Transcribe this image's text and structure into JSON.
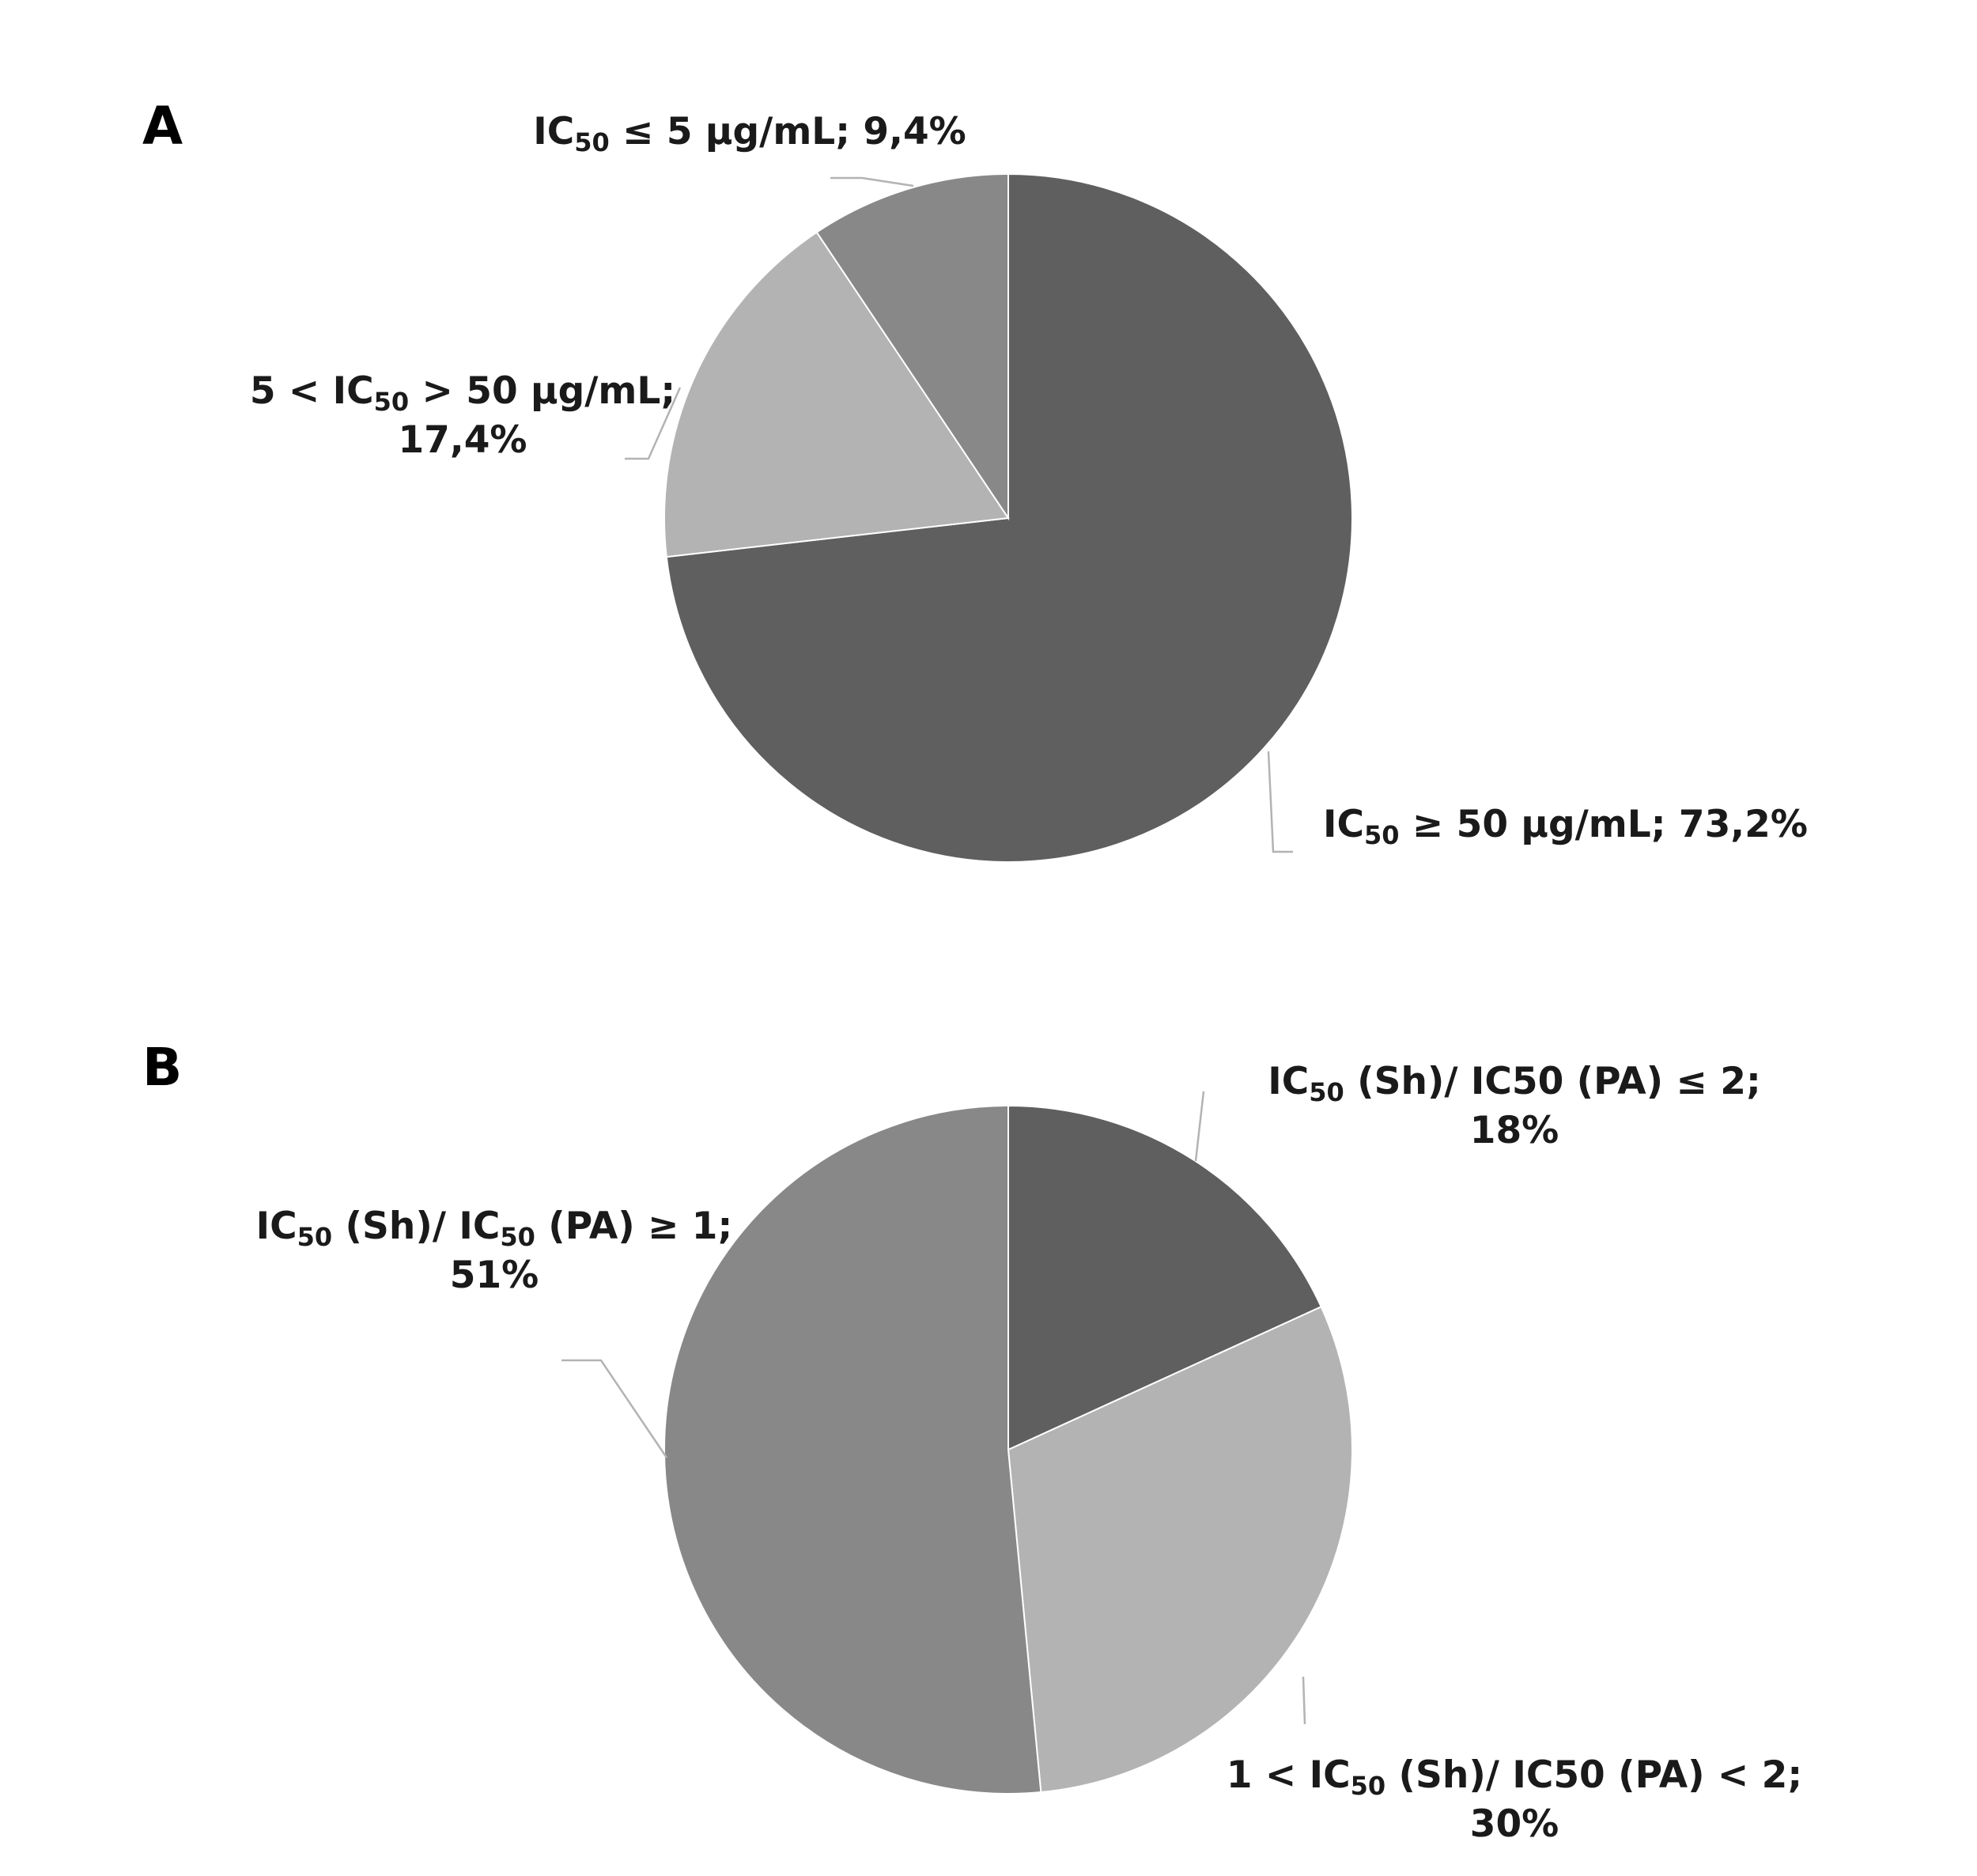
{
  "chart_data": [
    {
      "type": "pie",
      "panel": "A",
      "start_angle_deg": 0,
      "direction": "clockwise",
      "slices": [
        {
          "value": 73.2,
          "color": "#5f5f5f",
          "label_lines": [
            [
              {
                "t": "IC"
              },
              {
                "t": "50",
                "sub": true
              },
              {
                "t": " ≥ 50 µg/mL; 73,2%"
              }
            ]
          ]
        },
        {
          "value": 17.4,
          "color": "#b3b3b3",
          "label_lines": [
            [
              {
                "t": "5 < IC"
              },
              {
                "t": "50",
                "sub": true
              },
              {
                "t": " > 50 µg/mL;"
              }
            ],
            [
              {
                "t": "17,4%"
              }
            ]
          ]
        },
        {
          "value": 9.4,
          "color": "#888888",
          "label_lines": [
            [
              {
                "t": "IC"
              },
              {
                "t": "50",
                "sub": true
              },
              {
                "t": " ≤ 5 µg/mL; 9,4%"
              }
            ]
          ]
        }
      ]
    },
    {
      "type": "pie",
      "panel": "B",
      "start_angle_deg": 0,
      "direction": "clockwise",
      "slices": [
        {
          "value": 18,
          "color": "#5f5f5f",
          "label_lines": [
            [
              {
                "t": "IC"
              },
              {
                "t": "50",
                "sub": true
              },
              {
                "t": " (Sh)/ IC50 (PA) ≤ 2;"
              }
            ],
            [
              {
                "t": "18%"
              }
            ]
          ]
        },
        {
          "value": 30,
          "color": "#b3b3b3",
          "label_lines": [
            [
              {
                "t": "1 < IC"
              },
              {
                "t": "50",
                "sub": true
              },
              {
                "t": " (Sh)/ IC50 (PA) < 2;"
              }
            ],
            [
              {
                "t": "30%"
              }
            ]
          ]
        },
        {
          "value": 51,
          "color": "#888888",
          "label_lines": [
            [
              {
                "t": "IC"
              },
              {
                "t": "50",
                "sub": true
              },
              {
                "t": " (Sh)/ IC"
              },
              {
                "t": "50",
                "sub": true
              },
              {
                "t": " (PA) ≥ 1;"
              }
            ],
            [
              {
                "t": "51%"
              }
            ]
          ]
        }
      ]
    }
  ]
}
